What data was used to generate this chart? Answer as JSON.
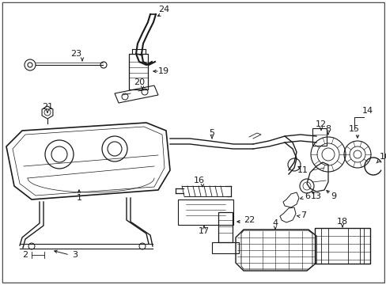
{
  "bg_color": "#ffffff",
  "line_color": "#1a1a1a",
  "fig_width": 4.89,
  "fig_height": 3.6,
  "dpi": 100,
  "label_fs": 8.0
}
